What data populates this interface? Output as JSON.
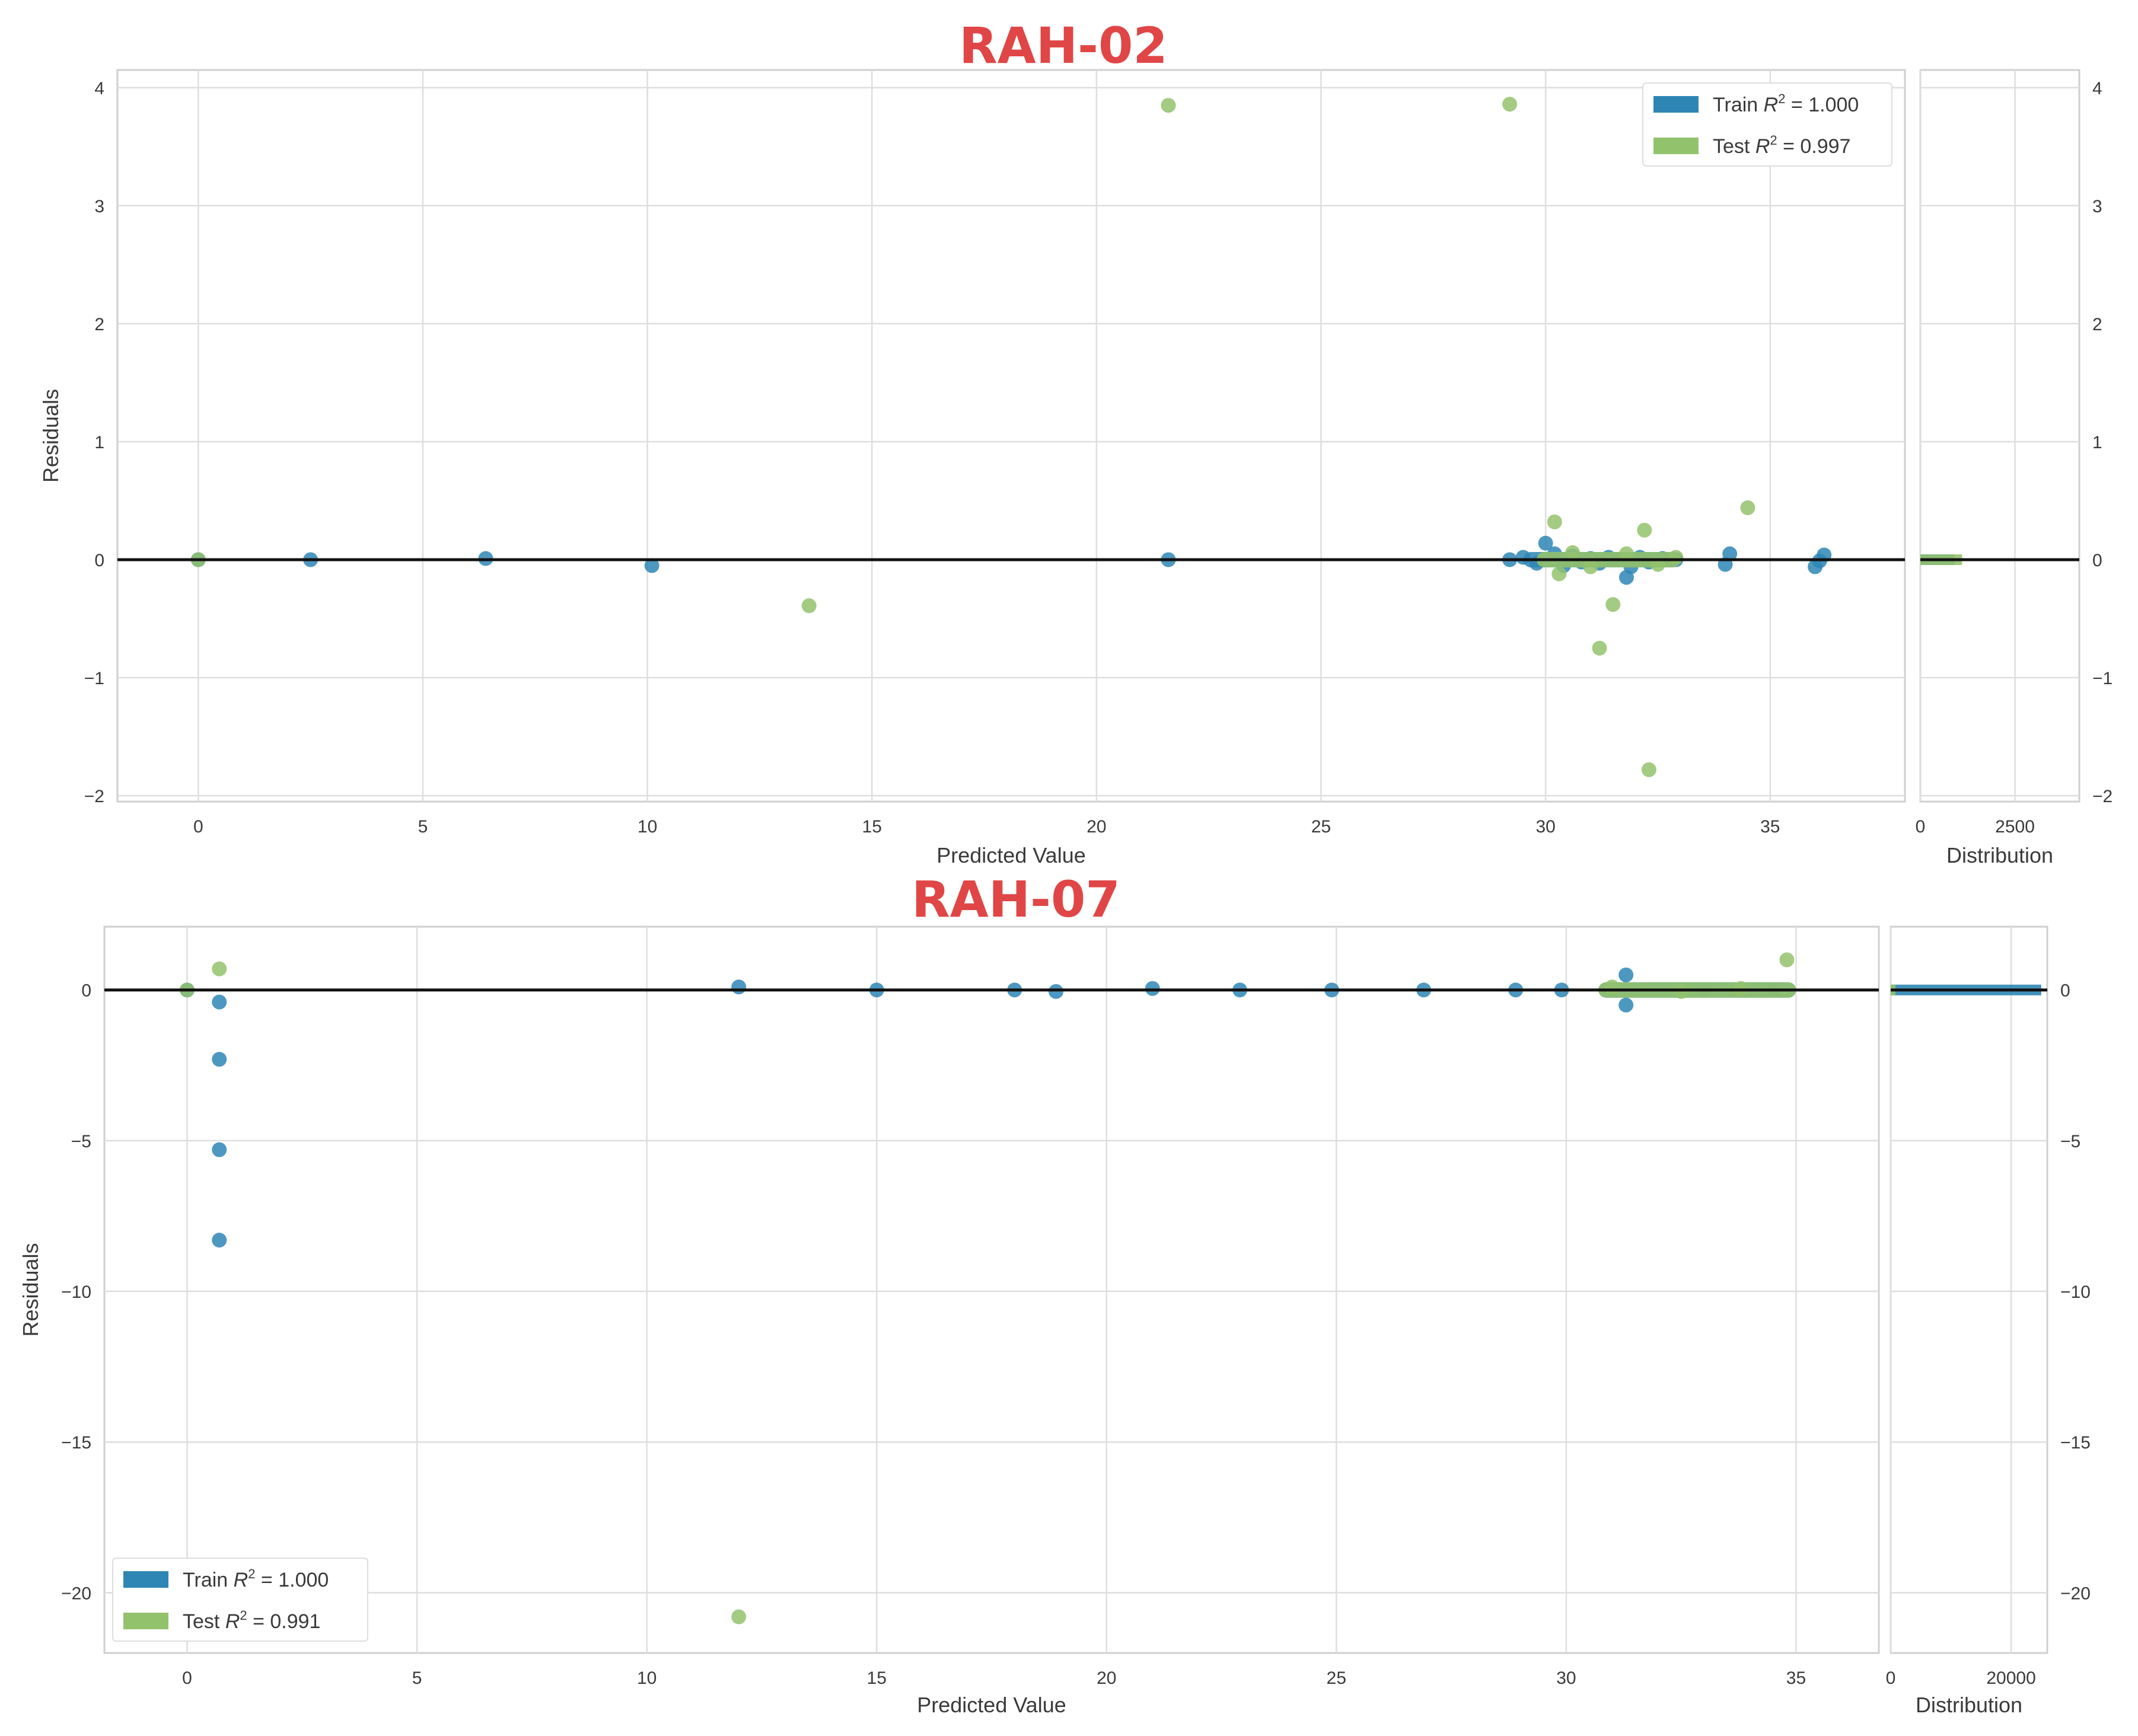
{
  "chart_data": [
    {
      "type": "scatter",
      "title": "RAH-02",
      "xlabel": "Predicted Value",
      "ylabel": "Residuals",
      "side_xlabel": "Distribution",
      "xlim": [
        -1.8,
        38.0
      ],
      "ylim": [
        -2.05,
        4.15
      ],
      "xticks": [
        0,
        5,
        10,
        15,
        20,
        25,
        30,
        35
      ],
      "yticks": [
        -2,
        -1,
        0,
        1,
        2,
        3,
        4
      ],
      "side_xlim": [
        0,
        4200
      ],
      "side_xticks": [
        0,
        2500
      ],
      "grid": true,
      "legend_position": "top-right",
      "zero_line": 0,
      "series": [
        {
          "name": "Train",
          "r2_value": "1.000",
          "color": "#2e86b5",
          "points": [
            [
              0,
              0
            ],
            [
              2.5,
              0
            ],
            [
              6.4,
              0.01
            ],
            [
              10.1,
              -0.05
            ],
            [
              21.6,
              0
            ],
            [
              29.2,
              0
            ],
            [
              29.5,
              0.02
            ],
            [
              29.8,
              -0.03
            ],
            [
              30.0,
              0.14
            ],
            [
              30.2,
              0.05
            ],
            [
              30.4,
              -0.05
            ],
            [
              30.6,
              0.03
            ],
            [
              30.8,
              -0.02
            ],
            [
              31.0,
              0.01
            ],
            [
              31.2,
              -0.03
            ],
            [
              31.4,
              0.02
            ],
            [
              31.6,
              0
            ],
            [
              31.8,
              -0.15
            ],
            [
              31.9,
              -0.06
            ],
            [
              32.1,
              0.02
            ],
            [
              32.3,
              -0.02
            ],
            [
              32.6,
              0.01
            ],
            [
              32.9,
              0
            ],
            [
              34.0,
              -0.04
            ],
            [
              34.1,
              0.05
            ],
            [
              36.0,
              -0.06
            ],
            [
              36.1,
              -0.01
            ],
            [
              36.2,
              0.04
            ]
          ],
          "dense_band": {
            "x": [
              29.5,
              33.0
            ],
            "y": 0
          }
        },
        {
          "name": "Test",
          "r2_value": "0.997",
          "color": "#93c26c",
          "points": [
            [
              0,
              0
            ],
            [
              13.6,
              -0.39
            ],
            [
              21.6,
              3.85
            ],
            [
              29.2,
              3.86
            ],
            [
              30.2,
              0.32
            ],
            [
              30.3,
              -0.12
            ],
            [
              31.2,
              -0.75
            ],
            [
              31.5,
              -0.38
            ],
            [
              32.2,
              0.25
            ],
            [
              32.3,
              -1.78
            ],
            [
              34.5,
              0.44
            ],
            [
              30.6,
              0.06
            ],
            [
              31.0,
              -0.06
            ],
            [
              31.8,
              0.05
            ],
            [
              32.5,
              -0.04
            ],
            [
              32.9,
              0.02
            ]
          ],
          "dense_band": {
            "x": [
              29.8,
              33.0
            ],
            "y": 0
          }
        }
      ],
      "distribution": [
        {
          "name": "Train",
          "color": "#2e86b5",
          "x": [
            0,
            900
          ],
          "y": 0
        },
        {
          "name": "Test",
          "color": "#93c26c",
          "x": [
            0,
            1100
          ],
          "y": 0
        }
      ]
    },
    {
      "type": "scatter",
      "title": "RAH-07",
      "xlabel": "Predicted Value",
      "ylabel": "Residuals",
      "side_xlabel": "Distribution",
      "xlim": [
        -1.8,
        36.8
      ],
      "ylim": [
        -22.0,
        2.1
      ],
      "xticks": [
        0,
        5,
        10,
        15,
        20,
        25,
        30,
        35
      ],
      "yticks": [
        -20,
        -15,
        -10,
        -5,
        0
      ],
      "side_xlim": [
        0,
        26000
      ],
      "side_xticks": [
        0,
        20000
      ],
      "grid": true,
      "legend_position": "bottom-left",
      "zero_line": 0,
      "series": [
        {
          "name": "Train",
          "r2_value": "1.000",
          "color": "#2e86b5",
          "points": [
            [
              0,
              0
            ],
            [
              0.7,
              -0.4
            ],
            [
              0.7,
              -2.3
            ],
            [
              0.7,
              -5.3
            ],
            [
              0.7,
              -8.3
            ],
            [
              12.0,
              0.1
            ],
            [
              15.0,
              0
            ],
            [
              18.0,
              0
            ],
            [
              18.9,
              -0.05
            ],
            [
              21.0,
              0.05
            ],
            [
              22.9,
              0
            ],
            [
              24.9,
              0
            ],
            [
              26.9,
              0
            ],
            [
              28.9,
              0
            ],
            [
              29.9,
              0
            ],
            [
              31.3,
              0.5
            ],
            [
              31.3,
              -0.5
            ],
            [
              33.0,
              0
            ],
            [
              34.5,
              0
            ]
          ],
          "dense_band": {
            "x": [
              30.7,
              35.0
            ],
            "y": 0
          }
        },
        {
          "name": "Test",
          "r2_value": "0.991",
          "color": "#93c26c",
          "points": [
            [
              0,
              0
            ],
            [
              0.7,
              0.7
            ],
            [
              12.0,
              -20.8
            ],
            [
              34.8,
              1.0
            ],
            [
              31.0,
              0.1
            ],
            [
              32.5,
              -0.05
            ],
            [
              33.8,
              0.05
            ]
          ],
          "dense_band": {
            "x": [
              30.7,
              35.0
            ],
            "y": 0
          }
        }
      ],
      "distribution": [
        {
          "name": "Train",
          "color": "#2e86b5",
          "x": [
            0,
            25000
          ],
          "y": 0
        },
        {
          "name": "Test",
          "color": "#93c26c",
          "x": [
            0,
            800
          ],
          "y": 0
        }
      ]
    }
  ]
}
